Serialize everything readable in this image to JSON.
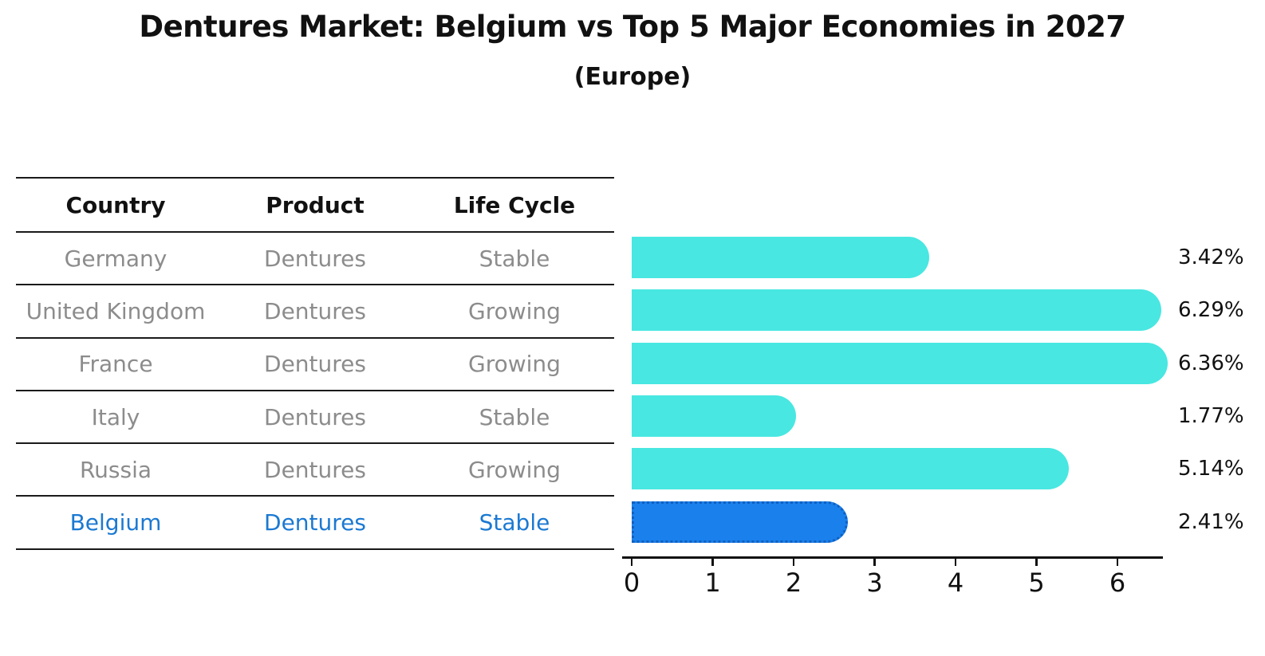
{
  "title": "Dentures Market: Belgium vs Top 5 Major Economies in 2027",
  "subtitle": "(Europe)",
  "table": {
    "headers": [
      "Country",
      "Product",
      "Life Cycle"
    ],
    "rows": [
      {
        "country": "Germany",
        "product": "Dentures",
        "life_cycle": "Stable"
      },
      {
        "country": "United Kingdom",
        "product": "Dentures",
        "life_cycle": "Growing"
      },
      {
        "country": "France",
        "product": "Dentures",
        "life_cycle": "Growing"
      },
      {
        "country": "Italy",
        "product": "Dentures",
        "life_cycle": "Stable"
      },
      {
        "country": "Russia",
        "product": "Dentures",
        "life_cycle": "Growing"
      },
      {
        "country": "Belgium",
        "product": "Dentures",
        "life_cycle": "Stable"
      }
    ],
    "highlight_row": "Belgium"
  },
  "chart_data": {
    "type": "bar",
    "orientation": "horizontal",
    "categories": [
      "Germany",
      "United Kingdom",
      "France",
      "Italy",
      "Russia",
      "Belgium"
    ],
    "values": [
      3.42,
      6.29,
      6.36,
      1.77,
      5.14,
      2.41
    ],
    "value_labels": [
      "3.42%",
      "6.29%",
      "6.36%",
      "1.77%",
      "5.14%",
      "2.41%"
    ],
    "x_ticks": [
      "0",
      "1",
      "2",
      "3",
      "4",
      "5",
      "6"
    ],
    "xlim": [
      0,
      6.56
    ],
    "grid": false,
    "legend": false,
    "highlight_index": 5,
    "colors": {
      "bar": "#48e7e1",
      "highlight_bar": "#1a80ec",
      "highlight_border": "#1060c0",
      "highlight_text": "#1b79d2",
      "row_text": "#8c8c8c",
      "header_text": "#111111"
    }
  }
}
